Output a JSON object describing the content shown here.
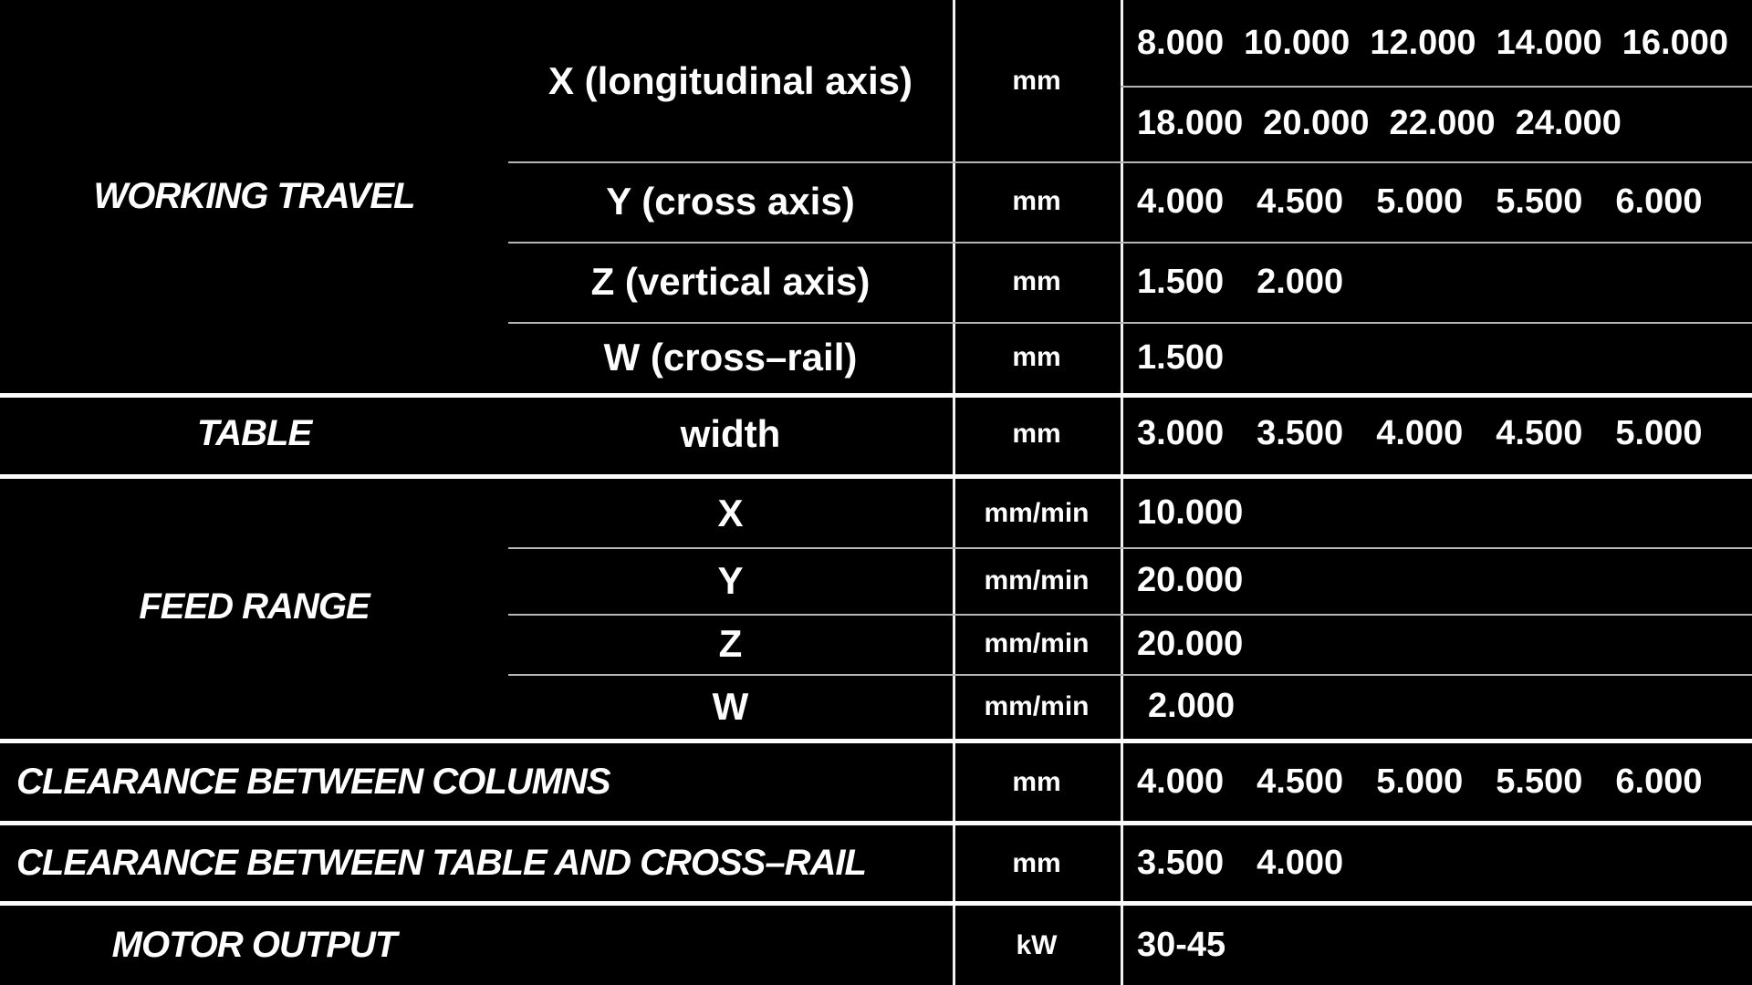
{
  "page": {
    "background_color": "#000000",
    "text_color": "#ffffff",
    "grid_line_color": "#f2f2f2",
    "thin_line_color": "#b5b5b5"
  },
  "table": {
    "working_travel": {
      "category": "WORKING TRAVEL",
      "rows": {
        "x": {
          "label": "X (longitudinal axis)",
          "unit": "mm",
          "values_line1": [
            "8.000",
            "10.000",
            "12.000",
            "14.000",
            "16.000"
          ],
          "values_line2": [
            "18.000",
            "20.000",
            "22.000",
            "24.000"
          ]
        },
        "y": {
          "label": "Y (cross axis)",
          "unit": "mm",
          "values": [
            "4.000",
            "4.500",
            "5.000",
            "5.500",
            "6.000"
          ]
        },
        "z": {
          "label": "Z (vertical axis)",
          "unit": "mm",
          "values": [
            "1.500",
            "2.000"
          ]
        },
        "w": {
          "label": "W (cross–rail)",
          "unit": "mm",
          "values": [
            "1.500"
          ]
        }
      }
    },
    "table_row": {
      "category": "TABLE",
      "label": "width",
      "unit": "mm",
      "values": [
        "3.000",
        "3.500",
        "4.000",
        "4.500",
        "5.000"
      ]
    },
    "feed_range": {
      "category": "FEED RANGE",
      "rows": {
        "x": {
          "label": "X",
          "unit": "mm/min",
          "values": [
            "10.000"
          ]
        },
        "y": {
          "label": "Y",
          "unit": "mm/min",
          "values": [
            "20.000"
          ]
        },
        "z": {
          "label": "Z",
          "unit": "mm/min",
          "values": [
            "20.000"
          ]
        },
        "w": {
          "label": "W",
          "unit": "mm/min",
          "values": [
            "2.000"
          ]
        }
      }
    },
    "clearance_columns": {
      "category": "CLEARANCE BETWEEN COLUMNS",
      "unit": "mm",
      "values": [
        "4.000",
        "4.500",
        "5.000",
        "5.500",
        "6.000"
      ]
    },
    "clearance_table": {
      "category": "CLEARANCE BETWEEN TABLE AND CROSS–RAIL",
      "unit": "mm",
      "values": [
        "3.500",
        "4.000"
      ]
    },
    "motor_output": {
      "category": "MOTOR OUTPUT",
      "unit": "kW",
      "values": [
        "30-45"
      ]
    }
  }
}
